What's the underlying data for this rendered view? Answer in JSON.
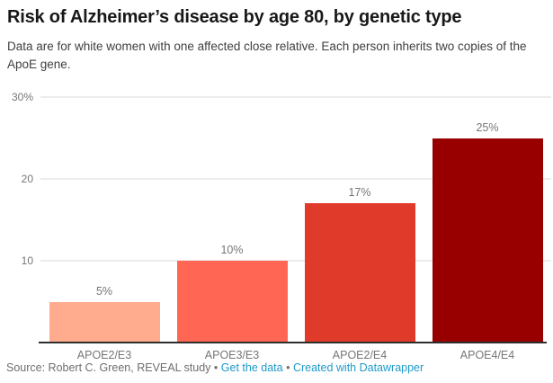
{
  "chart_data": {
    "type": "bar",
    "title": "Risk of Alzheimer’s disease by age 80, by genetic type",
    "subtitle": "Data are for white women with one affected close relative. Each person inherits two copies of the ApoE gene.",
    "categories": [
      "APOE2/E3",
      "APOE3/E3",
      "APOE2/E4",
      "APOE4/E4"
    ],
    "values": [
      5,
      10,
      17,
      25
    ],
    "value_labels": [
      "5%",
      "10%",
      "17%",
      "25%"
    ],
    "bar_colors": [
      "#ffac8e",
      "#ff6653",
      "#e03a2a",
      "#980000"
    ],
    "xlabel": "",
    "ylabel": "",
    "ylim": [
      0,
      30
    ],
    "yticks": [
      {
        "value": 30,
        "label": "30%"
      },
      {
        "value": 20,
        "label": "20"
      },
      {
        "value": 10,
        "label": "10"
      }
    ],
    "grid": true,
    "legend": "none"
  },
  "footer": {
    "source_text": "Source: Robert C. Green, REVEAL study",
    "separator": "•",
    "links": [
      {
        "label": "Get the data"
      },
      {
        "label": "Created with Datawrapper"
      }
    ],
    "link_color": "#1f9ac9"
  }
}
